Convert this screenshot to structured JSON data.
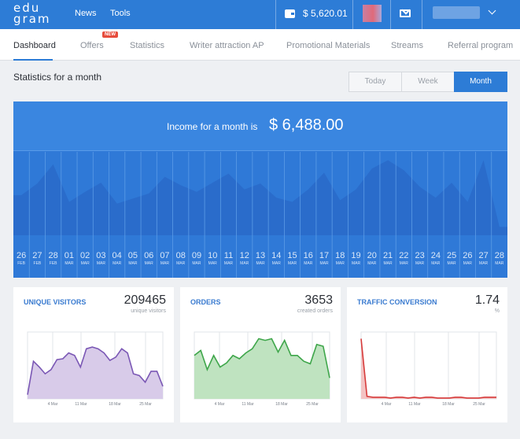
{
  "header": {
    "logo": "edu gram",
    "nav": [
      "News",
      "Tools"
    ],
    "balance": "$ 5,620.01"
  },
  "tabs": [
    {
      "label": "Dashboard",
      "active": true
    },
    {
      "label": "Offers",
      "badge": "NEW"
    },
    {
      "label": "Statistics"
    },
    {
      "label": "Writer attraction AP"
    },
    {
      "label": "Promotional Materials"
    },
    {
      "label": "Streams"
    },
    {
      "label": "Referral program"
    }
  ],
  "stats": {
    "title": "Statistics for a month",
    "ranges": [
      "Today",
      "Week",
      "Month"
    ],
    "active_range": "Month"
  },
  "income": {
    "label": "Income for a month is",
    "value": "$ 6,488.00"
  },
  "colors": {
    "accent": "#2d7cd6",
    "visitors": "#7b58b5",
    "orders": "#3ea64a",
    "conversion": "#d63b3b"
  },
  "chart_data": [
    {
      "type": "area",
      "title": "Income for a month is $ 6,488.00",
      "categories": [
        {
          "day": "26",
          "month": "FEB"
        },
        {
          "day": "27",
          "month": "FEB"
        },
        {
          "day": "28",
          "month": "FEB"
        },
        {
          "day": "01",
          "month": "MAR"
        },
        {
          "day": "02",
          "month": "MAR"
        },
        {
          "day": "03",
          "month": "MAR"
        },
        {
          "day": "04",
          "month": "MAR"
        },
        {
          "day": "05",
          "month": "MAR"
        },
        {
          "day": "06",
          "month": "MAR"
        },
        {
          "day": "07",
          "month": "MAR"
        },
        {
          "day": "08",
          "month": "MAR"
        },
        {
          "day": "09",
          "month": "MAR"
        },
        {
          "day": "10",
          "month": "MAR"
        },
        {
          "day": "11",
          "month": "MAR"
        },
        {
          "day": "12",
          "month": "MAR"
        },
        {
          "day": "13",
          "month": "MAR"
        },
        {
          "day": "14",
          "month": "MAR"
        },
        {
          "day": "15",
          "month": "MAR"
        },
        {
          "day": "16",
          "month": "MAR"
        },
        {
          "day": "17",
          "month": "MAR"
        },
        {
          "day": "18",
          "month": "MAR"
        },
        {
          "day": "19",
          "month": "MAR"
        },
        {
          "day": "20",
          "month": "MAR"
        },
        {
          "day": "21",
          "month": "MAR"
        },
        {
          "day": "22",
          "month": "MAR"
        },
        {
          "day": "23",
          "month": "MAR"
        },
        {
          "day": "24",
          "month": "MAR"
        },
        {
          "day": "25",
          "month": "MAR"
        },
        {
          "day": "26",
          "month": "MAR"
        },
        {
          "day": "27",
          "month": "MAR"
        },
        {
          "day": "28",
          "month": "MAR"
        }
      ],
      "values": [
        48,
        62,
        85,
        40,
        52,
        63,
        38,
        44,
        50,
        70,
        60,
        52,
        63,
        74,
        55,
        62,
        45,
        40,
        55,
        75,
        42,
        55,
        80,
        90,
        78,
        58,
        45,
        63,
        40,
        90,
        10
      ],
      "ylim": [
        0,
        100
      ],
      "grid": true
    },
    {
      "type": "area",
      "title": "Unique visitors",
      "value": "209465",
      "subtitle": "unique visitors",
      "x_ticks": [
        "4 Mar",
        "11 Mar",
        "18 Mar",
        "25 Mar"
      ],
      "values": [
        5,
        45,
        38,
        30,
        35,
        47,
        48,
        55,
        52,
        38,
        60,
        62,
        60,
        55,
        46,
        50,
        60,
        55,
        30,
        28,
        20,
        33,
        33,
        15
      ],
      "ylim": [
        0,
        80
      ]
    },
    {
      "type": "area",
      "title": "Orders",
      "value": "3653",
      "subtitle": "created orders",
      "x_ticks": [
        "4 Mar",
        "11 Mar",
        "18 Mar",
        "25 Mar"
      ],
      "values": [
        52,
        58,
        35,
        52,
        38,
        43,
        52,
        48,
        55,
        60,
        72,
        70,
        72,
        56,
        70,
        52,
        52,
        45,
        42,
        65,
        63,
        25
      ],
      "ylim": [
        0,
        80
      ]
    },
    {
      "type": "area",
      "title": "Traffic conversion",
      "value": "1.74",
      "subtitle": "%",
      "x_ticks": [
        "4 Mar",
        "11 Mar",
        "18 Mar",
        "25 Mar"
      ],
      "values": [
        72,
        3,
        2,
        2,
        2,
        1,
        2,
        2,
        1,
        2,
        1,
        2,
        2,
        1,
        1,
        1,
        2,
        2,
        1,
        1,
        1,
        2,
        2,
        2
      ],
      "ylim": [
        0,
        80
      ]
    }
  ]
}
